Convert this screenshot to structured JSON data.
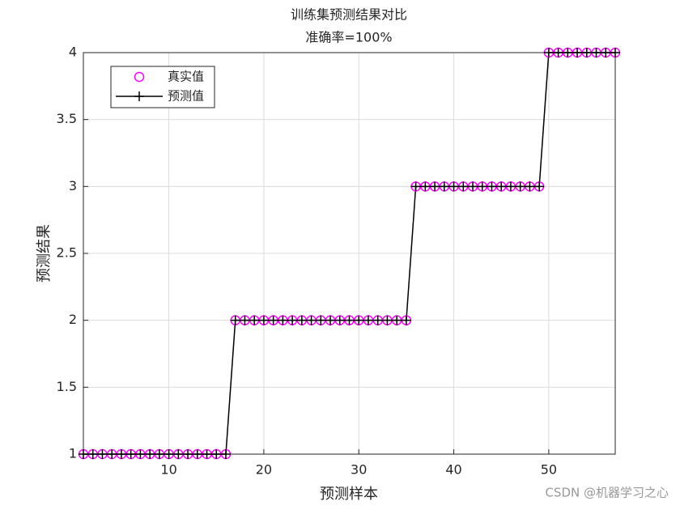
{
  "chart_data": {
    "type": "line",
    "title": "训练集预测结果对比",
    "subtitle": "准确率=100%",
    "x_label": "预测样本",
    "y_label": "预测结果",
    "x": [
      1,
      2,
      3,
      4,
      5,
      6,
      7,
      8,
      9,
      10,
      11,
      12,
      13,
      14,
      15,
      16,
      17,
      18,
      19,
      20,
      21,
      22,
      23,
      24,
      25,
      26,
      27,
      28,
      29,
      30,
      31,
      32,
      33,
      34,
      35,
      36,
      37,
      38,
      39,
      40,
      41,
      42,
      43,
      44,
      45,
      46,
      47,
      48,
      49,
      50,
      51,
      52,
      53,
      54,
      55,
      56,
      57
    ],
    "series": [
      {
        "name": "真实值",
        "color": "#ff00ff",
        "marker": "o",
        "line": false,
        "values": [
          1,
          1,
          1,
          1,
          1,
          1,
          1,
          1,
          1,
          1,
          1,
          1,
          1,
          1,
          1,
          1,
          2,
          2,
          2,
          2,
          2,
          2,
          2,
          2,
          2,
          2,
          2,
          2,
          2,
          2,
          2,
          2,
          2,
          2,
          2,
          3,
          3,
          3,
          3,
          3,
          3,
          3,
          3,
          3,
          3,
          3,
          3,
          3,
          3,
          4,
          4,
          4,
          4,
          4,
          4,
          4,
          4
        ]
      },
      {
        "name": "预测值",
        "color": "#000000",
        "marker": "+",
        "line": true,
        "values": [
          1,
          1,
          1,
          1,
          1,
          1,
          1,
          1,
          1,
          1,
          1,
          1,
          1,
          1,
          1,
          1,
          2,
          2,
          2,
          2,
          2,
          2,
          2,
          2,
          2,
          2,
          2,
          2,
          2,
          2,
          2,
          2,
          2,
          2,
          2,
          3,
          3,
          3,
          3,
          3,
          3,
          3,
          3,
          3,
          3,
          3,
          3,
          3,
          3,
          4,
          4,
          4,
          4,
          4,
          4,
          4,
          4
        ]
      }
    ],
    "xlim": [
      1,
      57
    ],
    "xticks": [
      10,
      20,
      30,
      40,
      50
    ],
    "ylim": [
      1,
      4
    ],
    "yticks": [
      1,
      1.5,
      2,
      2.5,
      3,
      3.5,
      4
    ],
    "grid": true,
    "legend": "upper left",
    "watermark": "CSDN @机器学习之心"
  }
}
